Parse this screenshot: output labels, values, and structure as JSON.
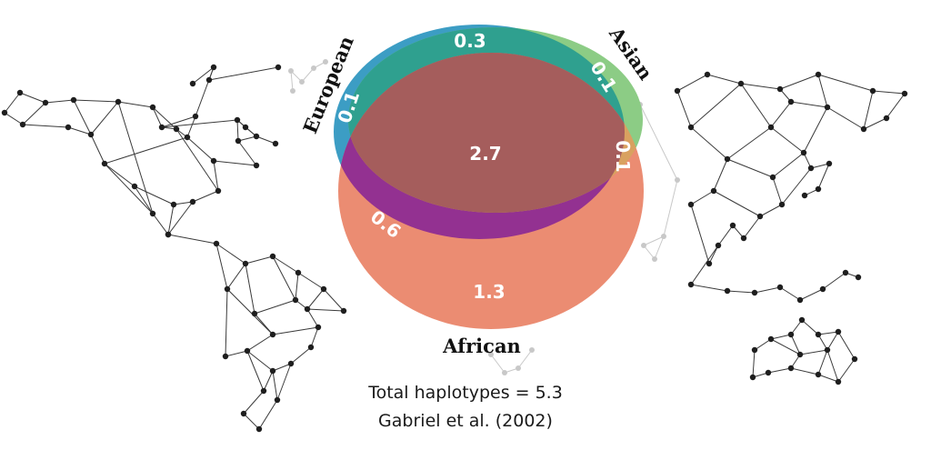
{
  "venn": {
    "sets": [
      {
        "key": "european",
        "label": "European",
        "color": "#3c9dc4"
      },
      {
        "key": "asian",
        "label": "Asian",
        "color": "#8ccc85"
      },
      {
        "key": "african",
        "label": "African",
        "color": "#eb8c72"
      }
    ],
    "regions": {
      "european_only": "0.1",
      "european_asian": "0.3",
      "asian_only": "0.1",
      "all_three": "2.7",
      "asian_african": "0.1",
      "european_african": "0.6",
      "african_only": "1.3"
    },
    "region_colors": {
      "european_asian": "#2fa08f",
      "all_three": "#a55d5c",
      "european_african": "#933191",
      "asian_african": "#d9a160"
    }
  },
  "captions": {
    "total": "Total haplotypes = 5.3",
    "citation": "Gabriel et al. (2002)"
  },
  "colors": {
    "network_dark": "#1e1e1e",
    "network_line": "#3a3a3a",
    "network_faint": "#c8c8c8"
  }
}
